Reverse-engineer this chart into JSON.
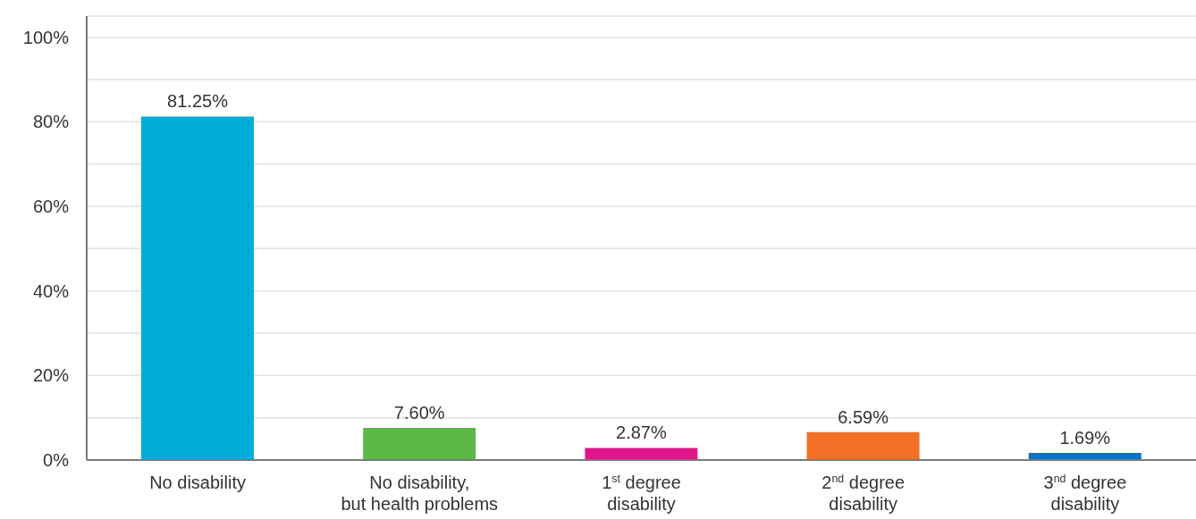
{
  "chart_data": {
    "type": "bar",
    "categories": [
      "No disability",
      "No disability, but health problems",
      "1$^{st}$ degree disability",
      "2$^{nd}$ degree disability",
      "3$^{nd}$ degree disability"
    ],
    "values": [
      81.25,
      7.6,
      2.87,
      6.59,
      1.69
    ],
    "colors": [
      "#00acd8",
      "#5cb947",
      "#e0168a",
      "#f26f28",
      "#0a72c8"
    ],
    "value_labels": [
      "81.25%",
      "7.60%",
      "2.87%",
      "6.59%",
      "1.69%"
    ],
    "ylim": [
      0,
      105
    ],
    "yticks": [
      {
        "value": 0,
        "label": "0%"
      },
      {
        "value": 10,
        "label": null
      },
      {
        "value": 20,
        "label": "20%"
      },
      {
        "value": 30,
        "label": null
      },
      {
        "value": 40,
        "label": "40%"
      },
      {
        "value": 50,
        "label": null
      },
      {
        "value": 60,
        "label": "60%"
      },
      {
        "value": 70,
        "label": null
      },
      {
        "value": 80,
        "label": "80%"
      },
      {
        "value": 90,
        "label": null
      },
      {
        "value": 100,
        "label": "100%"
      }
    ],
    "grid": "y"
  }
}
